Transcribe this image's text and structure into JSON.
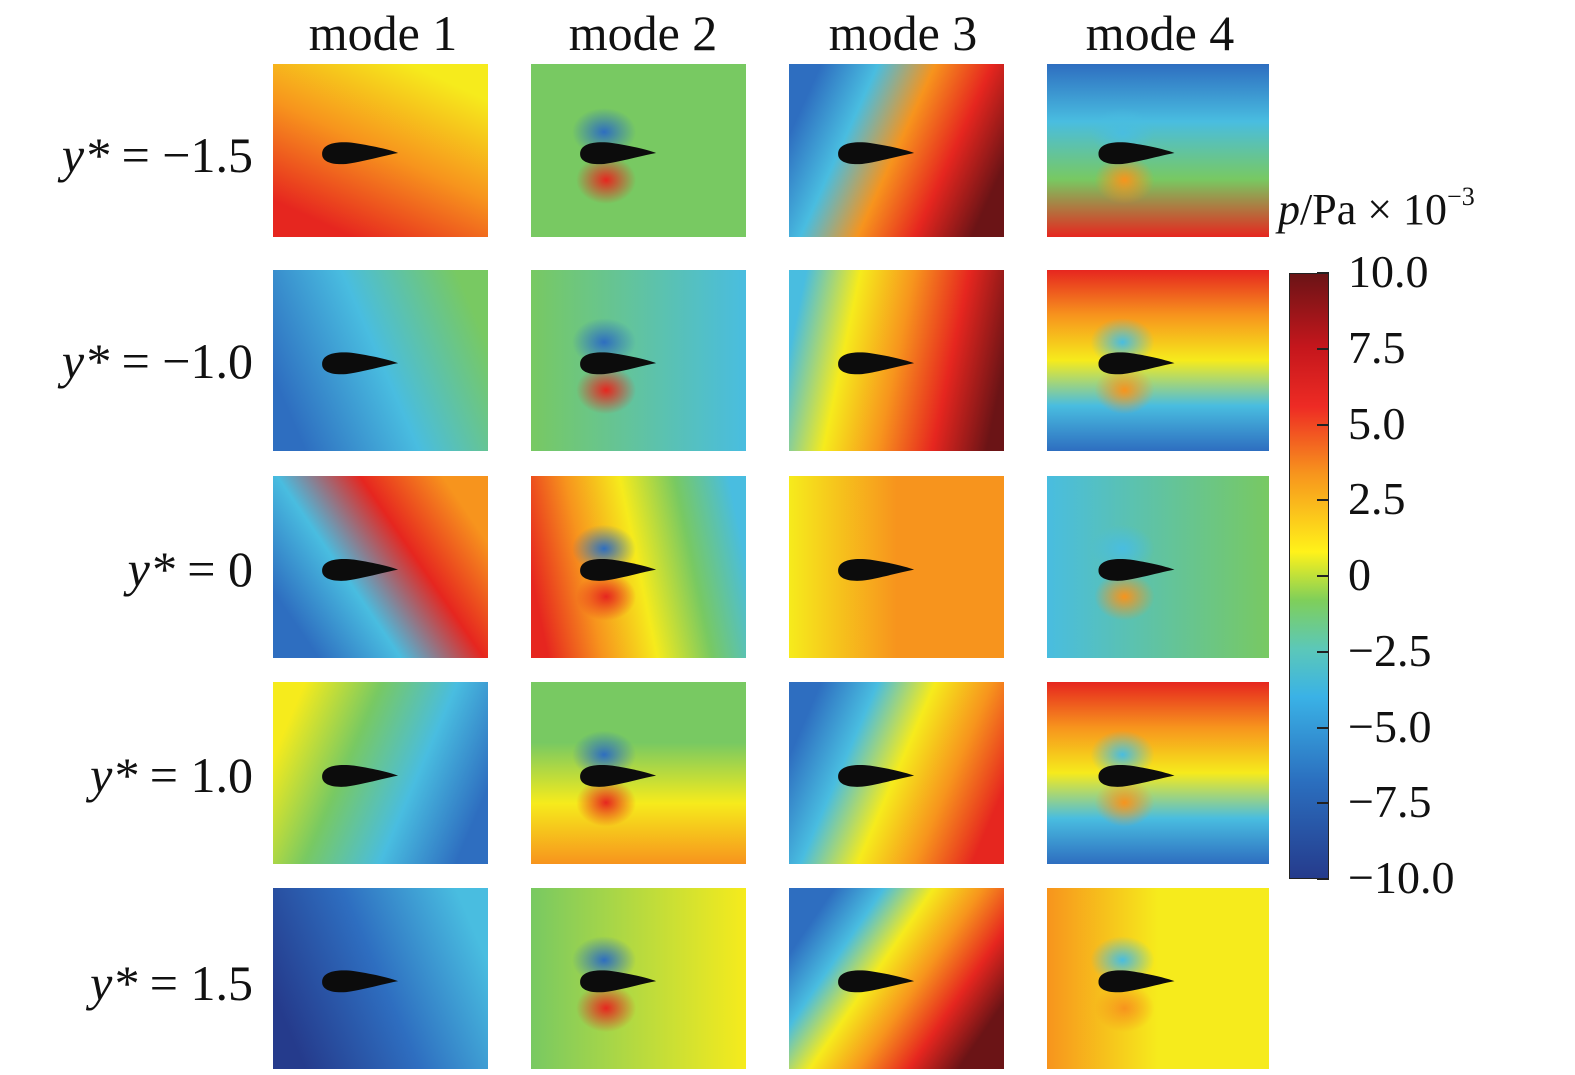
{
  "columns": [
    "mode 1",
    "mode 2",
    "mode 3",
    "mode 4"
  ],
  "rows": [
    {
      "var": "y*",
      "eq": " = ",
      "value": "−1.5"
    },
    {
      "var": "y*",
      "eq": " = ",
      "value": "−1.0"
    },
    {
      "var": "y*",
      "eq": " = ",
      "value": "0"
    },
    {
      "var": "y*",
      "eq": " = ",
      "value": "1.0"
    },
    {
      "var": "y*",
      "eq": " = ",
      "value": "1.5"
    }
  ],
  "colorbar": {
    "title_var": "p",
    "title_unit": "/Pa × 10",
    "title_exp": "−3",
    "ticks": [
      "10.0",
      "7.5",
      "5.0",
      "2.5",
      "0",
      "−2.5",
      "−5.0",
      "−7.5",
      "−10.0"
    ]
  },
  "colors": {
    "dark_red": "#6b1416",
    "red": "#e6261f",
    "orange": "#f7941d",
    "yellow": "#f6eb1c",
    "green": "#78c962",
    "cyan": "#49bde0",
    "blue": "#2e6ec0",
    "dark_blue": "#253b8c",
    "airfoil": "#0c0c0c"
  }
}
